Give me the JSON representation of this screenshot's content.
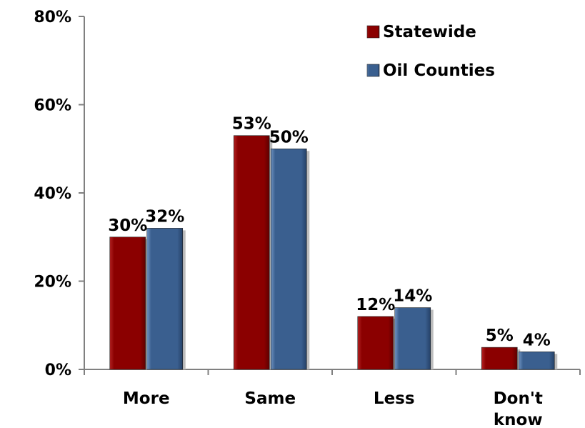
{
  "chart_data": {
    "type": "bar",
    "title": "",
    "xlabel": "",
    "ylabel": "",
    "categories": [
      "More",
      "Same",
      "Less",
      "Don't know"
    ],
    "category_lines": [
      [
        "More"
      ],
      [
        "Same"
      ],
      [
        "Less"
      ],
      [
        "Don't",
        "know"
      ]
    ],
    "series": [
      {
        "name": "Statewide",
        "values": [
          30,
          53,
          12,
          5
        ],
        "labels": [
          "30%",
          "53%",
          "12%",
          "5%"
        ],
        "color": "#8b0000"
      },
      {
        "name": "Oil Counties",
        "values": [
          32,
          50,
          14,
          4
        ],
        "labels": [
          "32%",
          "50%",
          "14%",
          "4%"
        ],
        "color": "#3a5f8f"
      }
    ],
    "ylim": [
      0,
      80
    ],
    "yticks": [
      0,
      20,
      40,
      60,
      80
    ],
    "ytick_labels": [
      "0%",
      "20%",
      "40%",
      "60%",
      "80%"
    ],
    "grid": false,
    "legend_position": "top-right"
  }
}
